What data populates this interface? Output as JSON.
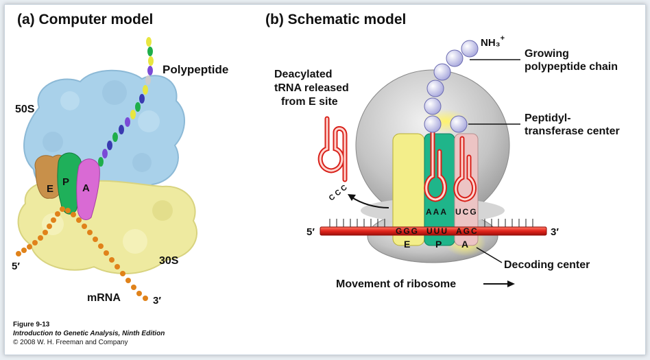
{
  "panel_a": {
    "title": "(a)  Computer model",
    "labels": {
      "polypeptide": "Polypeptide",
      "large_subunit": "50S",
      "small_subunit": "30S",
      "site_e": "E",
      "site_p": "P",
      "site_a": "A",
      "five_prime": "5′",
      "three_prime": "3′",
      "mrna": "mRNA"
    }
  },
  "panel_b": {
    "title": "(b)  Schematic model",
    "labels": {
      "nh3": "NH₃",
      "nh3_charge": "+",
      "growing_line1": "Growing",
      "growing_line2": "polypeptide chain",
      "deacylated_line1": "Deacylated",
      "deacylated_line2": "tRNA released",
      "deacylated_line3": "from E site",
      "peptidyl_line1": "Peptidyl-",
      "peptidyl_line2": "transferase center",
      "cca": "C C C",
      "codons_e": "GGG",
      "codons_p": "UUU",
      "codons_a": "AGC",
      "anticodon_p": "AAA",
      "anticodon_a": "UCG",
      "site_e": "E",
      "site_p": "P",
      "site_a": "A",
      "five_prime": "5′",
      "three_prime": "3′",
      "decoding": "Decoding center",
      "movement": "Movement of ribosome"
    }
  },
  "caption": {
    "figure": "Figure 9-13",
    "book": "Introduction to Genetic Analysis, Ninth Edition",
    "copyright": "© 2008 W. H. Freeman and Company"
  },
  "colors": {
    "large_subunit_a": "#a9d1ea",
    "small_subunit_a": "#eeeaa0",
    "ribosome_b": "#c9c9c9",
    "trna_e": "#f3ee8a",
    "trna_p": "#1fb58a",
    "trna_a": "#ecc4c4",
    "mrna": "#e0241b",
    "amino_acid": "#c8c8ee"
  }
}
